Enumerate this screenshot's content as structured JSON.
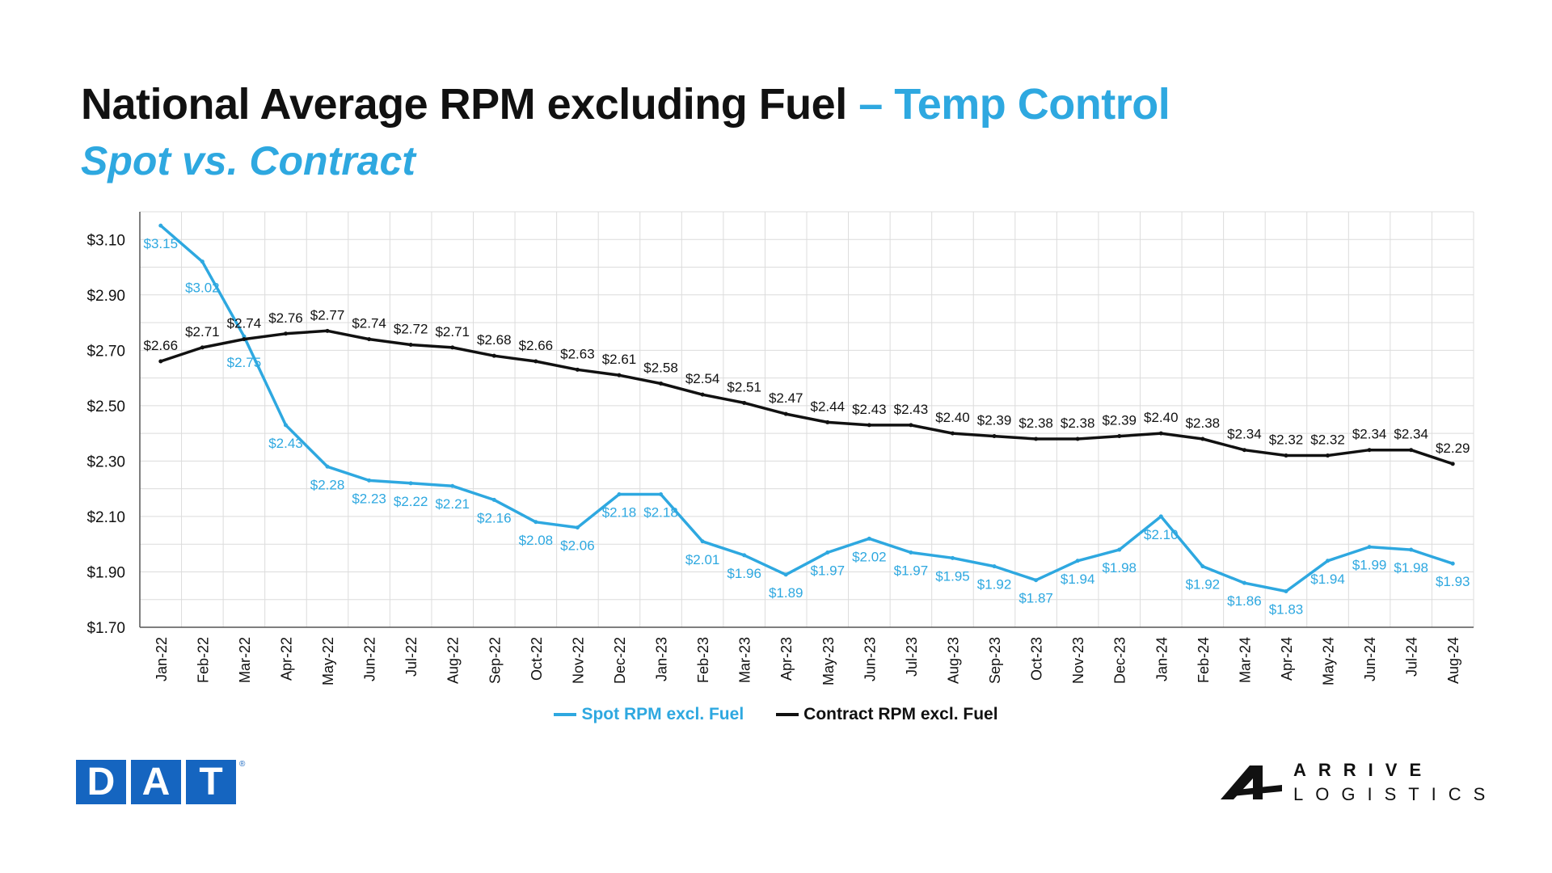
{
  "title": {
    "main": "National Average RPM excluding Fuel",
    "accent": " – Temp Control",
    "subtitle": "Spot vs. Contract"
  },
  "colors": {
    "spot": "#2ea8e0",
    "contract": "#111111",
    "accent": "#2ea8e0",
    "dat_blue": "#1565c0"
  },
  "chart_data": {
    "type": "line",
    "categories": [
      "Jan-22",
      "Feb-22",
      "Mar-22",
      "Apr-22",
      "May-22",
      "Jun-22",
      "Jul-22",
      "Aug-22",
      "Sep-22",
      "Oct-22",
      "Nov-22",
      "Dec-22",
      "Jan-23",
      "Feb-23",
      "Mar-23",
      "Apr-23",
      "May-23",
      "Jun-23",
      "Jul-23",
      "Aug-23",
      "Sep-23",
      "Oct-23",
      "Nov-23",
      "Dec-23",
      "Jan-24",
      "Feb-24",
      "Mar-24",
      "Apr-24",
      "May-24",
      "Jun-24",
      "Jul-24",
      "Aug-24"
    ],
    "series": [
      {
        "name": "Spot RPM excl. Fuel",
        "color": "#2ea8e0",
        "values": [
          3.15,
          3.02,
          2.75,
          2.43,
          2.28,
          2.23,
          2.22,
          2.21,
          2.16,
          2.08,
          2.06,
          2.18,
          2.18,
          2.01,
          1.96,
          1.89,
          1.97,
          2.02,
          1.97,
          1.95,
          1.92,
          1.87,
          1.94,
          1.98,
          2.1,
          1.92,
          1.86,
          1.83,
          1.94,
          1.99,
          1.98,
          1.93
        ],
        "labels": [
          "$3.15",
          "$3.02",
          "$2.75",
          "$2.43",
          "$2.28",
          "$2.23",
          "$2.22",
          "$2.21",
          "$2.16",
          "$2.08",
          "$2.06",
          "$2.18",
          "$2.18",
          "$2.01",
          "$1.96",
          "$1.89",
          "$1.97",
          "$2.02",
          "$1.97",
          "$1.95",
          "$1.92",
          "$1.87",
          "$1.94",
          "$1.98",
          "$2.10",
          "$1.92",
          "$1.86",
          "$1.83",
          "$1.94",
          "$1.99",
          "$1.98",
          "$1.93"
        ]
      },
      {
        "name": "Contract RPM excl. Fuel",
        "color": "#111111",
        "values": [
          2.66,
          2.71,
          2.74,
          2.76,
          2.77,
          2.74,
          2.72,
          2.71,
          2.68,
          2.66,
          2.63,
          2.61,
          2.58,
          2.54,
          2.51,
          2.47,
          2.44,
          2.43,
          2.43,
          2.4,
          2.39,
          2.38,
          2.38,
          2.39,
          2.4,
          2.38,
          2.34,
          2.32,
          2.32,
          2.34,
          2.34,
          2.29
        ],
        "labels": [
          "$2.66",
          "$2.71",
          "$2.74",
          "$2.76",
          "$2.77",
          "$2.74",
          "$2.72",
          "$2.71",
          "$2.68",
          "$2.66",
          "$2.63",
          "$2.61",
          "$2.58",
          "$2.54",
          "$2.51",
          "$2.47",
          "$2.44",
          "$2.43",
          "$2.43",
          "$2.40",
          "$2.39",
          "$2.38",
          "$2.38",
          "$2.39",
          "$2.40",
          "$2.38",
          "$2.34",
          "$2.32",
          "$2.32",
          "$2.34",
          "$2.34",
          "$2.29"
        ]
      }
    ],
    "y_ticks": [
      1.7,
      1.9,
      2.1,
      2.3,
      2.5,
      2.7,
      2.9,
      3.1
    ],
    "y_tick_labels": [
      "$1.70",
      "$1.90",
      "$2.10",
      "$2.30",
      "$2.50",
      "$2.70",
      "$2.90",
      "$3.10"
    ],
    "ylim": [
      1.7,
      3.2
    ],
    "grid": true,
    "legend_position": "bottom-center"
  },
  "logos": {
    "dat_letters": [
      "D",
      "A",
      "T"
    ],
    "dat_reg": "®",
    "arrive_line1": "ARRIVE",
    "arrive_line2": "LOGISTICS"
  }
}
